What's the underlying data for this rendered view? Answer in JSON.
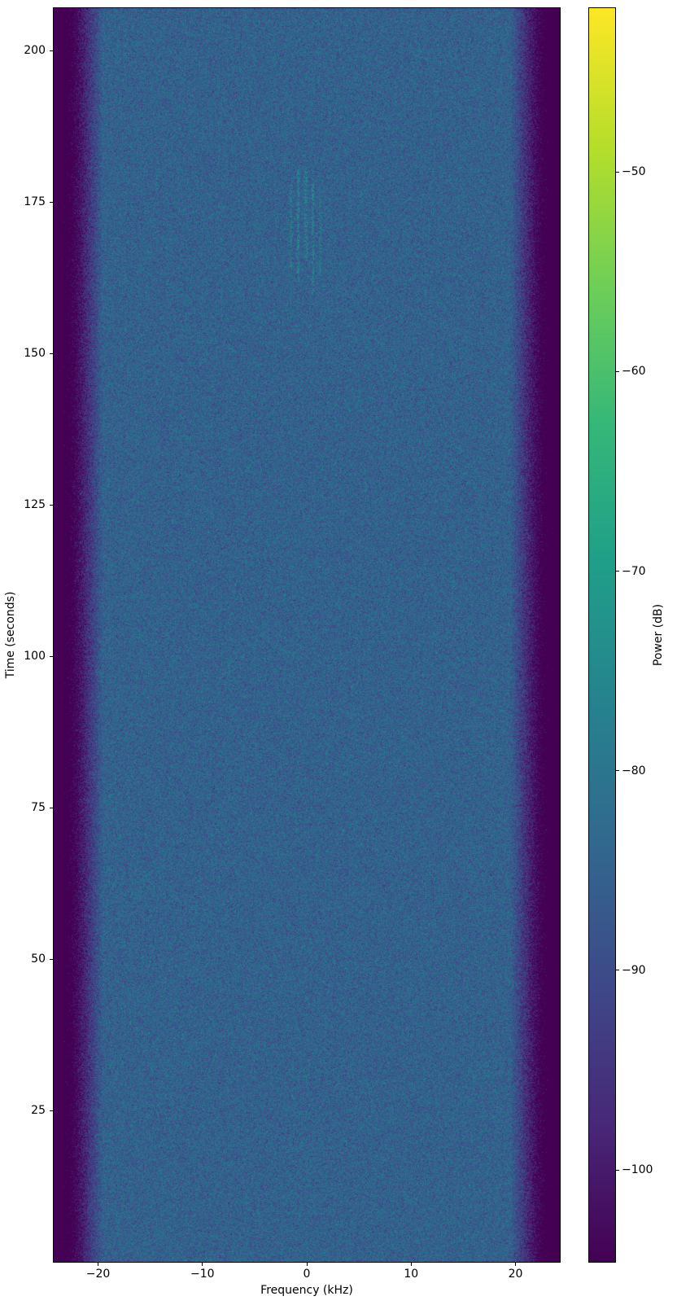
{
  "figure": {
    "background_color": "#ffffff",
    "text_color": "#000000"
  },
  "chart_data": {
    "type": "heatmap",
    "title": "",
    "xlabel": "Frequency (kHz)",
    "ylabel": "Time (seconds)",
    "colorbar_label": "Power (dB)",
    "xlim_khz": [
      -24.25,
      24.25
    ],
    "ylim_s": [
      0,
      207
    ],
    "clim_db": [
      -104.6,
      -41.8
    ],
    "grid": false,
    "x_ticks": [
      {
        "value": -20,
        "label": "−20"
      },
      {
        "value": -10,
        "label": "−10"
      },
      {
        "value": 0,
        "label": "0"
      },
      {
        "value": 10,
        "label": "10"
      },
      {
        "value": 20,
        "label": "20"
      }
    ],
    "y_ticks": [
      {
        "value": 25,
        "label": "25"
      },
      {
        "value": 50,
        "label": "50"
      },
      {
        "value": 75,
        "label": "75"
      },
      {
        "value": 100,
        "label": "100"
      },
      {
        "value": 125,
        "label": "125"
      },
      {
        "value": 150,
        "label": "150"
      },
      {
        "value": 175,
        "label": "175"
      },
      {
        "value": 200,
        "label": "200"
      }
    ],
    "colorbar_ticks": [
      {
        "value": -50,
        "label": "−50"
      },
      {
        "value": -60,
        "label": "−60"
      },
      {
        "value": -70,
        "label": "−70"
      },
      {
        "value": -80,
        "label": "−80"
      },
      {
        "value": -90,
        "label": "−90"
      },
      {
        "value": -100,
        "label": "−100"
      }
    ],
    "colormap": "viridis",
    "colormap_stops": [
      "#440154",
      "#482878",
      "#3e4989",
      "#31688e",
      "#26828e",
      "#1f9e89",
      "#35b779",
      "#6ece58",
      "#b5de2b",
      "#fde725"
    ],
    "heatmap_model": {
      "description": "Broadband noise spectrogram: flat interior around -85 dB across ±19.5 kHz for the full 0-207 s duration, rolling off steeply to the noise floor at the ±24.25 kHz band edges (dark bands); faint narrowband tonal streaks near 0 kHz between ~160-181 s.",
      "interior_mean_db": -85,
      "noise_std_db": 4,
      "edge_rolloff_start_khz": 19.5,
      "edge_db_at_xlim": -120,
      "seed": 1337,
      "streaks": [
        {
          "f_khz": -1.55,
          "t_start_s": 164,
          "t_end_s": 178,
          "level_db": -76,
          "density": 0.35
        },
        {
          "f_khz": -0.85,
          "t_start_s": 162,
          "t_end_s": 181,
          "level_db": -74,
          "density": 0.45
        },
        {
          "f_khz": -0.1,
          "t_start_s": 166,
          "t_end_s": 180,
          "level_db": -75,
          "density": 0.4
        },
        {
          "f_khz": 0.55,
          "t_start_s": 160,
          "t_end_s": 178,
          "level_db": -74,
          "density": 0.45
        },
        {
          "f_khz": 1.25,
          "t_start_s": 163,
          "t_end_s": 176,
          "level_db": -76,
          "density": 0.35
        }
      ]
    }
  }
}
